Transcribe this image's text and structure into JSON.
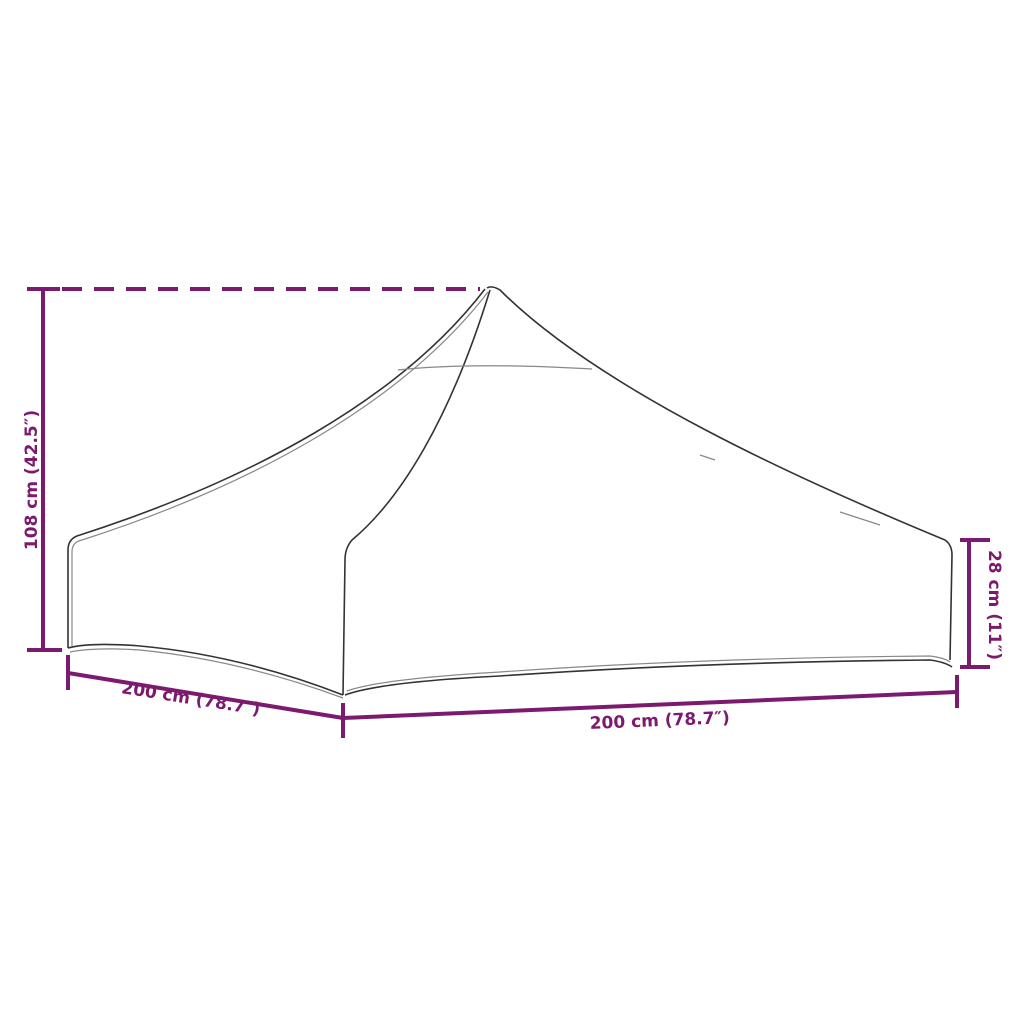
{
  "colors": {
    "dimension": "#7b1a6e",
    "outline": "#333333",
    "background": "#ffffff"
  },
  "dimensions": {
    "height": "108 cm (42.5″)",
    "depth": "200 cm (78.7″)",
    "width": "200 cm (78.7″)",
    "valance": "28 cm (11″)"
  }
}
